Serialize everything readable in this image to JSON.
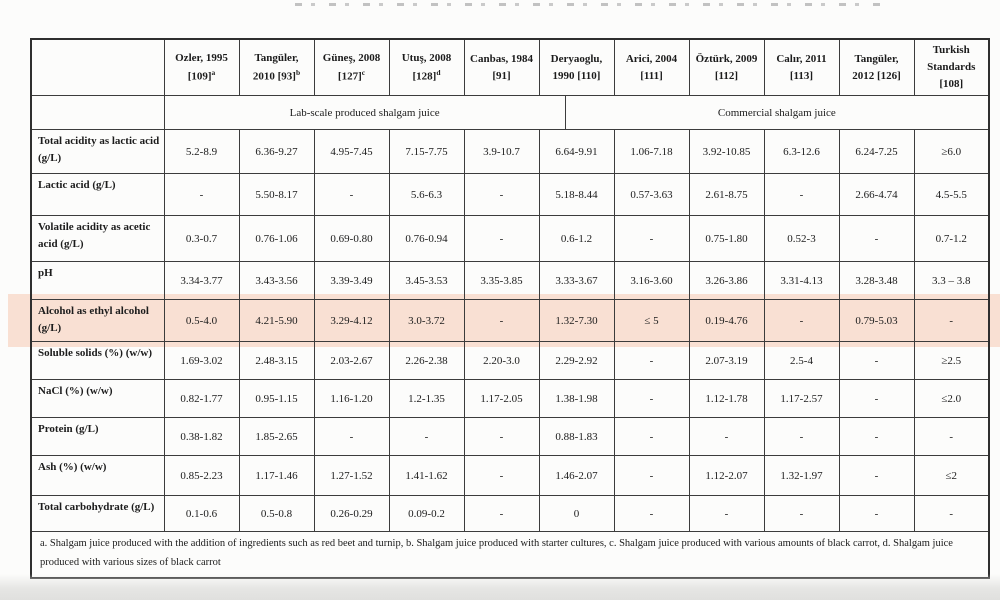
{
  "table": {
    "columns": [
      {
        "name": "Ozler, 1995",
        "ref": "[109]",
        "sup": "a"
      },
      {
        "name": "Tangüler, 2010",
        "ref": "[93]",
        "sup": "b"
      },
      {
        "name": "Güneş, 2008",
        "ref": "[127]",
        "sup": "c"
      },
      {
        "name": "Utuş, 2008",
        "ref": "[128]",
        "sup": "d"
      },
      {
        "name": "Canbas, 1984",
        "ref": "[91]",
        "sup": ""
      },
      {
        "name": "Deryaoglu, 1990",
        "ref": "[110]",
        "sup": ""
      },
      {
        "name": "Arici, 2004",
        "ref": "[111]",
        "sup": ""
      },
      {
        "name": "Öztürk, 2009",
        "ref": "[112]",
        "sup": ""
      },
      {
        "name": "Calır, 2011",
        "ref": "[113]",
        "sup": ""
      },
      {
        "name": "Tangüler, 2012",
        "ref": "[126]",
        "sup": ""
      },
      {
        "name": "Turkish Standards",
        "ref": "[108]",
        "sup": ""
      }
    ],
    "group_headers": [
      "Lab-scale produced shalgam juice",
      "Commercial shalgam juice"
    ],
    "rows": [
      {
        "label": "Total acidity as lactic acid (g/L)",
        "values": [
          "5.2-8.9",
          "6.36-9.27",
          "4.95-7.45",
          "7.15-7.75",
          "3.9-10.7",
          "6.64-9.91",
          "1.06-7.18",
          "3.92-10.85",
          "6.3-12.6",
          "6.24-7.25",
          "≥6.0"
        ]
      },
      {
        "label": "Lactic acid (g/L)",
        "values": [
          "-",
          "5.50-8.17",
          "-",
          "5.6-6.3",
          "-",
          "5.18-8.44",
          "0.57-3.63",
          "2.61-8.75",
          "-",
          "2.66-4.74",
          "4.5-5.5"
        ]
      },
      {
        "label": "Volatile acidity as acetic acid (g/L)",
        "values": [
          "0.3-0.7",
          "0.76-1.06",
          "0.69-0.80",
          "0.76-0.94",
          "-",
          "0.6-1.2",
          "-",
          "0.75-1.80",
          "0.52-3",
          "-",
          "0.7-1.2"
        ]
      },
      {
        "label": "pH",
        "values": [
          "3.34-3.77",
          "3.43-3.56",
          "3.39-3.49",
          "3.45-3.53",
          "3.35-3.85",
          "3.33-3.67",
          "3.16-3.60",
          "3.26-3.86",
          "3.31-4.13",
          "3.28-3.48",
          "3.3 – 3.8"
        ]
      },
      {
        "label": "Alcohol as ethyl alcohol (g/L)",
        "values": [
          "0.5-4.0",
          "4.21-5.90",
          "3.29-4.12",
          "3.0-3.72",
          "-",
          "1.32-7.30",
          "≤ 5",
          "0.19-4.76",
          "-",
          "0.79-5.03",
          "-"
        ]
      },
      {
        "label": "Soluble solids (%) (w/w)",
        "values": [
          "1.69-3.02",
          "2.48-3.15",
          "2.03-2.67",
          "2.26-2.38",
          "2.20-3.0",
          "2.29-2.92",
          "-",
          "2.07-3.19",
          "2.5-4",
          "-",
          "≥2.5"
        ]
      },
      {
        "label": "NaCl (%) (w/w)",
        "values": [
          "0.82-1.77",
          "0.95-1.15",
          "1.16-1.20",
          "1.2-1.35",
          "1.17-2.05",
          "1.38-1.98",
          "-",
          "1.12-1.78",
          "1.17-2.57",
          "-",
          "≤2.0"
        ]
      },
      {
        "label": "Protein (g/L)",
        "values": [
          "0.38-1.82",
          "1.85-2.65",
          "-",
          "-",
          "-",
          "0.88-1.83",
          "-",
          "-",
          "-",
          "-",
          "-"
        ]
      },
      {
        "label": "Ash (%) (w/w)",
        "values": [
          "0.85-2.23",
          "1.17-1.46",
          "1.27-1.52",
          "1.41-1.62",
          "-",
          "1.46-2.07",
          "-",
          "1.12-2.07",
          "1.32-1.97",
          "-",
          "≤2"
        ]
      },
      {
        "label": "Total carbohydrate (g/L)",
        "values": [
          "0.1-0.6",
          "0.5-0.8",
          "0.26-0.29",
          "0.09-0.2",
          "-",
          "0",
          "-",
          "-",
          "-",
          "-",
          "-"
        ]
      }
    ],
    "highlight": {
      "row_index": 4,
      "color": "#f9e0d3"
    },
    "footnote": "a. Shalgam juice produced with the addition of ingredients such as red beet and turnip, b. Shalgam juice produced with starter cultures, c. Shalgam juice produced with various amounts of black carrot, d. Shalgam juice produced with various sizes of black carrot"
  }
}
